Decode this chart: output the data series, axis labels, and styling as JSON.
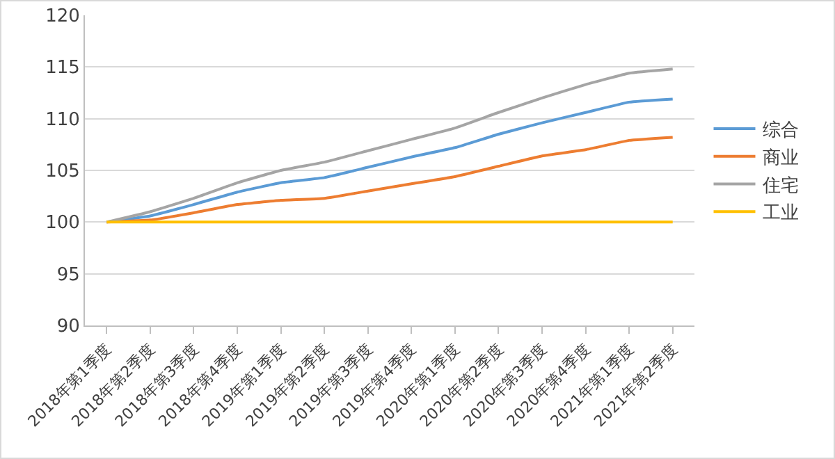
{
  "chart_data": {
    "type": "line",
    "categories": [
      "2018年第1季度",
      "2018年第2季度",
      "2018年第3季度",
      "2018年第4季度",
      "2019年第1季度",
      "2019年第2季度",
      "2019年第3季度",
      "2019年第4季度",
      "2020年第1季度",
      "2020年第2季度",
      "2020年第3季度",
      "2020年第4季度",
      "2021年第1季度",
      "2021年第2季度"
    ],
    "series": [
      {
        "name": "综合",
        "color": "#5b9bd5",
        "values": [
          100,
          100.6,
          101.7,
          102.9,
          103.8,
          104.3,
          105.3,
          106.3,
          107.2,
          108.5,
          109.6,
          110.6,
          111.6,
          111.9
        ]
      },
      {
        "name": "商业",
        "color": "#ed7d31",
        "values": [
          100,
          100.2,
          100.9,
          101.7,
          102.1,
          102.3,
          103.0,
          103.7,
          104.4,
          105.4,
          106.4,
          107.0,
          107.9,
          108.2
        ]
      },
      {
        "name": "住宅",
        "color": "#a5a5a5",
        "values": [
          100,
          101.0,
          102.3,
          103.8,
          105.0,
          105.8,
          106.9,
          108.0,
          109.1,
          110.6,
          112.0,
          113.3,
          114.4,
          114.8
        ]
      },
      {
        "name": "工业",
        "color": "#ffc000",
        "values": [
          100,
          100,
          100,
          100,
          100,
          100,
          100,
          100,
          100,
          100,
          100,
          100,
          100,
          100
        ]
      }
    ],
    "ylim": [
      90,
      120
    ],
    "yticks": [
      90,
      95,
      100,
      105,
      110,
      115,
      120
    ],
    "grid": "y",
    "legend": "right",
    "marker": "none",
    "line_style": "solid"
  }
}
